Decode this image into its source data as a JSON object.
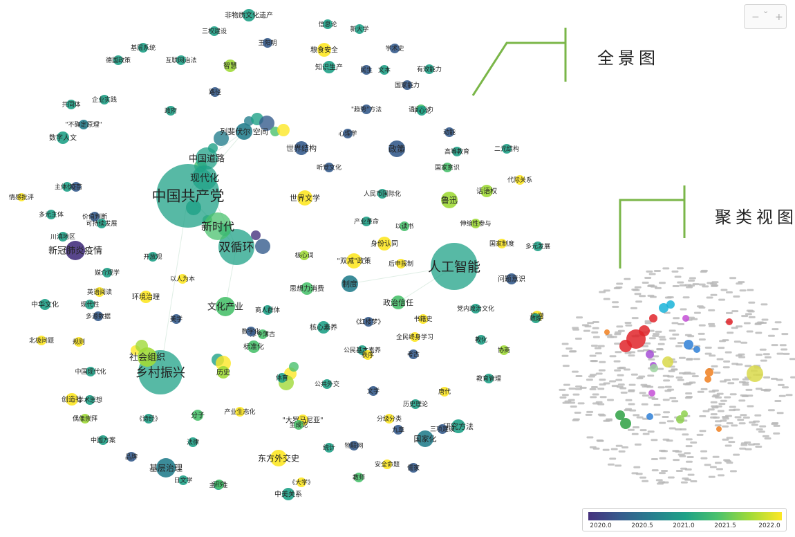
{
  "palette": {
    "viridis": [
      "#46327e",
      "#365c8d",
      "#277f8e",
      "#1fa187",
      "#4ac16d",
      "#a0da39",
      "#fde725"
    ],
    "callout_line": "#7ab648",
    "cluster_colors": [
      "#e0242a",
      "#19b3d8",
      "#2e7fd6",
      "#f07f1e",
      "#a64fd6",
      "#2ea043",
      "#8fd14f",
      "#c44fd6",
      "#9ed3a0",
      "#d9d94a"
    ]
  },
  "labels": {
    "overview": "全景图",
    "cluster": "聚类视图"
  },
  "colorbar": {
    "ticks": [
      "2020.0",
      "2020.5",
      "2021.0",
      "2021.5",
      "2022.0"
    ]
  },
  "zoom": {
    "out": "−",
    "in": "+"
  },
  "overview_nodes": [
    {
      "t": "中国共产党",
      "c": 3,
      "r": 46,
      "fs": 21
    },
    {
      "t": "人工智能",
      "c": 3,
      "r": 34,
      "fs": 19
    },
    {
      "t": "乡村振兴",
      "c": 3,
      "r": 32,
      "fs": 18
    },
    {
      "t": "双循环",
      "c": 3,
      "r": 26,
      "fs": 17
    },
    {
      "t": "新时代",
      "c": 4,
      "r": 20,
      "fs": 16
    },
    {
      "t": "现代化",
      "c": 3,
      "r": 18,
      "fs": 14
    },
    {
      "t": "中国道路",
      "c": 3,
      "r": 16,
      "fs": 13
    },
    {
      "t": "社会组织",
      "c": 5,
      "r": 14,
      "fs": 13
    },
    {
      "t": "新冠肺炎疫情",
      "c": 0,
      "r": 14,
      "fs": 13
    },
    {
      "t": "文化产业",
      "c": 4,
      "r": 14,
      "fs": 13
    },
    {
      "t": "基层治理",
      "c": 2,
      "r": 14,
      "fs": 12
    },
    {
      "t": "东方外交史",
      "c": 6,
      "r": 12,
      "fs": 12
    },
    {
      "t": "世界文学",
      "c": 6,
      "r": 11,
      "fs": 11
    },
    {
      "t": "鲁迅",
      "c": 5,
      "r": 12,
      "fs": 12
    },
    {
      "t": "列斐伏尔 空间",
      "c": 2,
      "r": 12,
      "fs": 11
    },
    {
      "t": "政策",
      "c": 1,
      "r": 12,
      "fs": 12
    },
    {
      "t": "制度",
      "c": 2,
      "r": 12,
      "fs": 11
    },
    {
      "t": "\"双减\"政策",
      "c": 6,
      "r": 11,
      "fs": 10
    },
    {
      "t": "身份认同",
      "c": 6,
      "r": 10,
      "fs": 10
    },
    {
      "t": "政治信任",
      "c": 4,
      "r": 10,
      "fs": 11
    },
    {
      "t": "研究方法",
      "c": 3,
      "r": 10,
      "fs": 11
    },
    {
      "t": "国家化",
      "c": 2,
      "r": 12,
      "fs": 11
    },
    {
      "t": "世界结构",
      "c": 1,
      "r": 10,
      "fs": 11
    },
    {
      "t": "非物质文化遗产",
      "c": 3,
      "r": 9,
      "fs": 10
    },
    {
      "t": "粮食安全",
      "c": 6,
      "r": 10,
      "fs": 10
    },
    {
      "t": "知识生产",
      "c": 3,
      "r": 9,
      "fs": 10
    },
    {
      "t": "智慧",
      "c": 5,
      "r": 9,
      "fs": 10
    },
    {
      "t": "核心素养",
      "c": 3,
      "r": 9,
      "fs": 10
    },
    {
      "t": "思想力消费",
      "c": 4,
      "r": 9,
      "fs": 10
    },
    {
      "t": "数字人文",
      "c": 3,
      "r": 9,
      "fs": 10
    },
    {
      "t": "中华文化",
      "c": 3,
      "r": 8,
      "fs": 10
    },
    {
      "t": "创造社",
      "c": 6,
      "r": 9,
      "fs": 10
    },
    {
      "t": "环境治理",
      "c": 6,
      "r": 9,
      "fs": 10
    },
    {
      "t": "历史",
      "c": 5,
      "r": 9,
      "fs": 10
    },
    {
      "t": "标准化",
      "c": 4,
      "r": 9,
      "fs": 10
    },
    {
      "t": "中美关系",
      "c": 3,
      "r": 9,
      "fs": 10
    },
    {
      "t": "话语权",
      "c": 5,
      "r": 9,
      "fs": 10
    },
    {
      "t": "唐僧",
      "c": 6,
      "r": 8,
      "fs": 10
    },
    {
      "t": "\"大罗马尼亚\"",
      "c": 6,
      "r": 8,
      "fs": 10
    },
    {
      "t": "分子",
      "c": 4,
      "r": 8,
      "fs": 10
    },
    {
      "t": "问题意识",
      "c": 1,
      "r": 8,
      "fs": 10
    },
    {
      "t": "全民终身学习",
      "c": 6,
      "r": 7,
      "fs": 9
    },
    {
      "t": "公民基本素养",
      "c": 3,
      "r": 7,
      "fs": 9
    },
    {
      "t": "《红楼梦》",
      "c": 1,
      "r": 7,
      "fs": 9
    },
    {
      "t": "人民币国际化",
      "c": 3,
      "r": 7,
      "fs": 9
    },
    {
      "t": "信息论",
      "c": 3,
      "r": 7,
      "fs": 9
    },
    {
      "t": "\"趋势\"方法",
      "c": 1,
      "r": 7,
      "fs": 9
    },
    {
      "t": "党内政治文化",
      "c": 3,
      "r": 7,
      "fs": 9
    },
    {
      "t": "历史理论",
      "c": 3,
      "r": 7,
      "fs": 9
    },
    {
      "t": "教育管理",
      "c": 3,
      "r": 7,
      "fs": 9
    },
    {
      "t": "国家能力",
      "c": 1,
      "r": 7,
      "fs": 9
    },
    {
      "t": "学术史",
      "c": 1,
      "r": 7,
      "fs": 9
    },
    {
      "t": "有效能力",
      "c": 3,
      "r": 7,
      "fs": 9
    },
    {
      "t": "语言能力",
      "c": 4,
      "r": 7,
      "fs": 9
    },
    {
      "t": "以人为本",
      "c": 6,
      "r": 7,
      "fs": 9
    },
    {
      "t": "媒介观学",
      "c": 3,
      "r": 7,
      "fs": 9
    },
    {
      "t": "英语阅读",
      "c": 6,
      "r": 7,
      "fs": 9
    },
    {
      "t": "开放观",
      "c": 3,
      "r": 7,
      "fs": 9
    },
    {
      "t": "多源数据",
      "c": 1,
      "r": 7,
      "fs": 9
    },
    {
      "t": "情感批评",
      "c": 6,
      "r": 6,
      "fs": 9
    },
    {
      "t": "北极问题",
      "c": 6,
      "r": 7,
      "fs": 9
    },
    {
      "t": "中国现代化",
      "c": 3,
      "r": 7,
      "fs": 9
    },
    {
      "t": "学术思想",
      "c": 3,
      "r": 7,
      "fs": 9
    },
    {
      "t": "偶像崇拜",
      "c": 5,
      "r": 7,
      "fs": 9
    },
    {
      "t": "《诗经》",
      "c": 3,
      "r": 7,
      "fs": 9
    },
    {
      "t": "产业生态化",
      "c": 6,
      "r": 7,
      "fs": 9
    },
    {
      "t": "分级分类",
      "c": 6,
      "r": 7,
      "fs": 9
    },
    {
      "t": "安全命题",
      "c": 6,
      "r": 7,
      "fs": 9
    },
    {
      "t": "品牌",
      "c": 1,
      "r": 7,
      "fs": 9
    },
    {
      "t": "主体性",
      "c": 3,
      "r": 7,
      "fs": 9
    },
    {
      "t": "互联网治法",
      "c": 3,
      "r": 7,
      "fs": 9
    },
    {
      "t": "基层系统",
      "c": 3,
      "r": 7,
      "fs": 9
    },
    {
      "t": "德国政策",
      "c": 3,
      "r": 7,
      "fs": 9
    },
    {
      "t": "三权建设",
      "c": 3,
      "r": 7,
      "fs": 9
    },
    {
      "t": "路径",
      "c": 1,
      "r": 7,
      "fs": 9
    },
    {
      "t": "政府",
      "c": 3,
      "r": 7,
      "fs": 9
    },
    {
      "t": "企业实践",
      "c": 3,
      "r": 7,
      "fs": 9
    },
    {
      "t": "共同体",
      "c": 3,
      "r": 7,
      "fs": 9
    },
    {
      "t": "\"不确定原理\"",
      "c": 2,
      "r": 7,
      "fs": 9
    },
    {
      "t": "主体价值",
      "c": 3,
      "r": 7,
      "fs": 9
    },
    {
      "t": "多元主体",
      "c": 3,
      "r": 7,
      "fs": 9
    },
    {
      "t": "价值判断",
      "c": 1,
      "r": 7,
      "fs": 9
    },
    {
      "t": "二元结构",
      "c": 3,
      "r": 7,
      "fs": 9
    },
    {
      "t": "代际关系",
      "c": 6,
      "r": 7,
      "fs": 9
    },
    {
      "t": "国家意识",
      "c": 4,
      "r": 7,
      "fs": 9
    },
    {
      "t": "高等教育",
      "c": 3,
      "r": 7,
      "fs": 9
    },
    {
      "t": "心理学",
      "c": 1,
      "r": 7,
      "fs": 9
    },
    {
      "t": "中心论",
      "c": 3,
      "r": 7,
      "fs": 9
    },
    {
      "t": "动能",
      "c": 1,
      "r": 7,
      "fs": 9
    },
    {
      "t": "核心词",
      "c": 5,
      "r": 7,
      "fs": 9
    },
    {
      "t": "后申报制",
      "c": 6,
      "r": 7,
      "fs": 9
    },
    {
      "t": "书籍史",
      "c": 6,
      "r": 7,
      "fs": 9
    },
    {
      "t": "伸缩性参与",
      "c": 5,
      "r": 7,
      "fs": 9
    },
    {
      "t": "听觉文化",
      "c": 1,
      "r": 7,
      "fs": 9
    },
    {
      "t": "产业革命",
      "c": 3,
      "r": 7,
      "fs": 9
    },
    {
      "t": "以读书",
      "c": 4,
      "r": 7,
      "fs": 9
    },
    {
      "t": "商人群体",
      "c": 3,
      "r": 7,
      "fs": 9
    },
    {
      "t": "厚今薄古",
      "c": 4,
      "r": 7,
      "fs": 9
    },
    {
      "t": "公共外交",
      "c": 3,
      "r": 7,
      "fs": 9
    },
    {
      "t": "文学",
      "c": 1,
      "r": 7,
      "fs": 9
    },
    {
      "t": "统计",
      "c": 3,
      "r": 7,
      "fs": 9
    },
    {
      "t": "物联网",
      "c": 1,
      "r": 7,
      "fs": 9
    },
    {
      "t": "教师",
      "c": 4,
      "r": 7,
      "fs": 9
    },
    {
      "t": "儒家",
      "c": 1,
      "r": 7,
      "fs": 9
    },
    {
      "t": "法律",
      "c": 3,
      "r": 7,
      "fs": 9
    },
    {
      "t": "日文学",
      "c": 3,
      "r": 7,
      "fs": 9
    },
    {
      "t": "研究",
      "c": 4,
      "r": 7,
      "fs": 9
    },
    {
      "t": "生成论",
      "c": 4,
      "r": 7,
      "fs": 9
    },
    {
      "t": "《大学》",
      "c": 6,
      "r": 7,
      "fs": 9
    },
    {
      "t": "九章",
      "c": 1,
      "r": 7,
      "fs": 9
    },
    {
      "t": "唐代",
      "c": 6,
      "r": 7,
      "fs": 9
    },
    {
      "t": "敦煌",
      "c": 3,
      "r": 7,
      "fs": 9
    },
    {
      "t": "秩序",
      "c": 6,
      "r": 7,
      "fs": 9
    },
    {
      "t": "体育",
      "c": 3,
      "r": 7,
      "fs": 9
    },
    {
      "t": "考古",
      "c": 1,
      "r": 7,
      "fs": 9
    },
    {
      "t": "教化",
      "c": 3,
      "r": 7,
      "fs": 9
    },
    {
      "t": "数字化",
      "c": 1,
      "r": 7,
      "fs": 9
    },
    {
      "t": "协商",
      "c": 5,
      "r": 7,
      "fs": 9
    },
    {
      "t": "民生",
      "c": 1,
      "r": 7,
      "fs": 9
    },
    {
      "t": "文本",
      "c": 3,
      "r": 7,
      "fs": 9
    },
    {
      "t": "王阳明",
      "c": 1,
      "r": 7,
      "fs": 9
    },
    {
      "t": "新大学",
      "c": 3,
      "r": 7,
      "fs": 9
    },
    {
      "t": "现代性",
      "c": 3,
      "r": 7,
      "fs": 9
    },
    {
      "t": "规则",
      "c": 6,
      "r": 7,
      "fs": 9
    },
    {
      "t": "中国方案",
      "c": 3,
      "r": 7,
      "fs": 9
    },
    {
      "t": "川滇地区",
      "c": 3,
      "r": 7,
      "fs": 9
    },
    {
      "t": "三项建设",
      "c": 1,
      "r": 7,
      "fs": 9
    },
    {
      "t": "多元发展",
      "c": 3,
      "r": 7,
      "fs": 9
    },
    {
      "t": "国家制度",
      "c": 6,
      "r": 7,
      "fs": 9
    },
    {
      "t": "美学",
      "c": 1,
      "r": 7,
      "fs": 9
    },
    {
      "t": "疫苗",
      "c": 1,
      "r": 7,
      "fs": 9
    },
    {
      "t": "可持续发展",
      "c": 3,
      "r": 7,
      "fs": 9
    }
  ]
}
